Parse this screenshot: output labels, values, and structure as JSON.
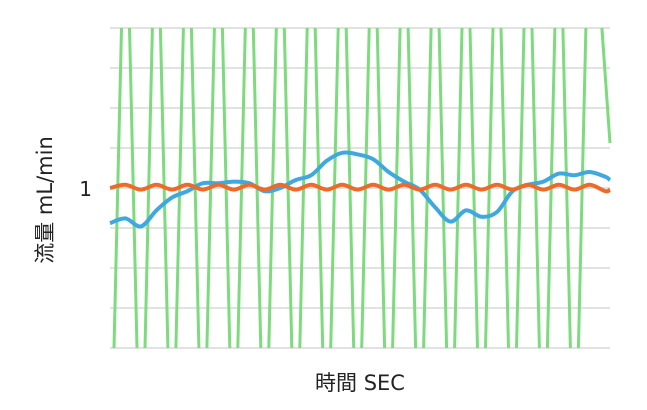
{
  "chart_data": {
    "type": "line",
    "title": "",
    "xlabel": "時間 SEC",
    "ylabel": "流量 mL/min",
    "xlim": [
      0,
      32.3
    ],
    "ylim": [
      0,
      2
    ],
    "yticks": [
      {
        "value": 1,
        "label": "1"
      }
    ],
    "grid": true,
    "grid_step": 0.25,
    "legend": "none",
    "series": [
      {
        "color": "#7ddb7d",
        "x": [
          0,
          1,
          2,
          3,
          4,
          5,
          6,
          7,
          8,
          9,
          10,
          11,
          12,
          13,
          14,
          15,
          16,
          17,
          18,
          19,
          20,
          21,
          22,
          23,
          24,
          25,
          26,
          27,
          28,
          29,
          30,
          31,
          32.3
        ],
        "values": [
          -1.07,
          3.07,
          -1.07,
          3.07,
          -1.07,
          3.07,
          -1.07,
          3.07,
          -1.07,
          3.07,
          -1.07,
          3.07,
          -1.07,
          3.07,
          -1.07,
          3.07,
          -1.07,
          3.07,
          -1.07,
          3.07,
          -1.07,
          3.07,
          -1.07,
          3.07,
          -1.07,
          3.07,
          -1.07,
          3.07,
          -1.07,
          3.07,
          -1.07,
          3.07,
          1.28
        ]
      },
      {
        "color": "#3ea8df",
        "x": [
          0,
          1,
          2,
          3,
          4,
          5,
          6,
          7,
          8,
          9,
          10,
          11,
          12,
          13,
          14,
          15,
          16,
          17,
          18,
          19,
          20,
          21,
          22,
          23,
          24,
          25,
          26,
          27,
          28,
          29,
          30,
          31,
          32,
          32.3
        ],
        "values": [
          0.78,
          0.81,
          0.76,
          0.86,
          0.94,
          0.98,
          1.03,
          1.03,
          1.04,
          1.03,
          0.98,
          1.0,
          1.05,
          1.08,
          1.17,
          1.22,
          1.21,
          1.18,
          1.1,
          1.04,
          0.99,
          0.88,
          0.79,
          0.86,
          0.82,
          0.85,
          0.98,
          1.02,
          1.04,
          1.09,
          1.08,
          1.1,
          1.07,
          1.05
        ]
      },
      {
        "color": "#ee6a2a",
        "x": [
          0,
          1,
          2,
          3,
          4,
          5,
          6,
          7,
          8,
          9,
          10,
          11,
          12,
          13,
          14,
          15,
          16,
          17,
          18,
          19,
          20,
          21,
          22,
          23,
          24,
          25,
          26,
          27,
          28,
          29,
          30,
          31,
          32,
          32.3
        ],
        "values": [
          1.0,
          1.02,
          0.99,
          1.02,
          0.99,
          1.02,
          0.99,
          1.02,
          0.99,
          1.02,
          0.99,
          1.02,
          0.99,
          1.02,
          0.99,
          1.02,
          0.99,
          1.02,
          0.99,
          1.02,
          0.99,
          1.02,
          0.99,
          1.02,
          0.99,
          1.02,
          0.99,
          1.02,
          0.99,
          1.02,
          0.99,
          1.02,
          0.98,
          0.99
        ]
      }
    ]
  }
}
